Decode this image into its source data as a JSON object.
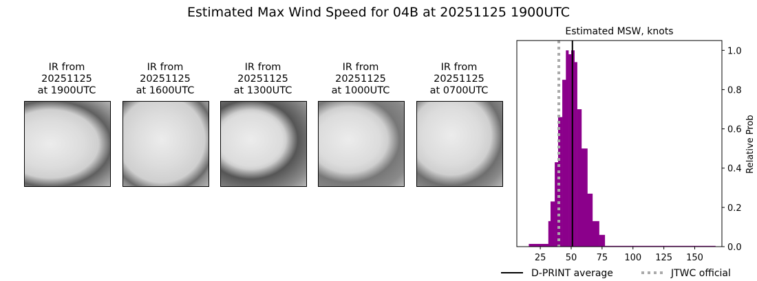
{
  "title": "Estimated Max Wind Speed for 04B at 20251125 1900UTC",
  "ir_panels": [
    {
      "line1": "IR from",
      "line2": "20251125",
      "line3": "at 1900UTC"
    },
    {
      "line1": "IR from",
      "line2": "20251125",
      "line3": "at 1600UTC"
    },
    {
      "line1": "IR from",
      "line2": "20251125",
      "line3": "at 1300UTC"
    },
    {
      "line1": "IR from",
      "line2": "20251125",
      "line3": "at 1000UTC"
    },
    {
      "line1": "IR from",
      "line2": "20251125",
      "line3": "at 0700UTC"
    }
  ],
  "chart_data": {
    "type": "bar",
    "title": "Estimated MSW, knots",
    "xlabel": "",
    "ylabel": "Relative Prob",
    "xlim": [
      6,
      172
    ],
    "ylim": [
      0,
      1.05
    ],
    "xticks": [
      25,
      50,
      75,
      100,
      125,
      150
    ],
    "yticks": [
      0.0,
      0.2,
      0.4,
      0.6,
      0.8,
      1.0
    ],
    "yaxis_side": "right",
    "bar_color": "#8b008b",
    "bins": [
      {
        "x0": 15.7,
        "x1": 31.5,
        "value": 0.014
      },
      {
        "x0": 31.5,
        "x1": 33.3,
        "value": 0.13
      },
      {
        "x0": 33.3,
        "x1": 36.7,
        "value": 0.23
      },
      {
        "x0": 36.7,
        "x1": 39.4,
        "value": 0.43
      },
      {
        "x0": 39.4,
        "x1": 42.8,
        "value": 0.66
      },
      {
        "x0": 42.8,
        "x1": 45.7,
        "value": 0.85
      },
      {
        "x0": 45.7,
        "x1": 47.8,
        "value": 1.0
      },
      {
        "x0": 47.8,
        "x1": 50.0,
        "value": 0.98
      },
      {
        "x0": 50.0,
        "x1": 52.6,
        "value": 1.0
      },
      {
        "x0": 52.6,
        "x1": 54.8,
        "value": 0.94
      },
      {
        "x0": 54.8,
        "x1": 58.3,
        "value": 0.7
      },
      {
        "x0": 58.3,
        "x1": 63.1,
        "value": 0.5
      },
      {
        "x0": 63.1,
        "x1": 67.2,
        "value": 0.27
      },
      {
        "x0": 67.2,
        "x1": 72.6,
        "value": 0.13
      },
      {
        "x0": 72.6,
        "x1": 77.2,
        "value": 0.06
      },
      {
        "x0": 77.2,
        "x1": 166.7,
        "value": 0.004
      }
    ],
    "lines": [
      {
        "name": "D-PRINT average",
        "x": 51,
        "color": "#000000",
        "style": "solid"
      },
      {
        "name": "JTWC official",
        "x": 40,
        "color": "#aaaaaa",
        "style": "dotted"
      }
    ],
    "legend": "bottom"
  }
}
